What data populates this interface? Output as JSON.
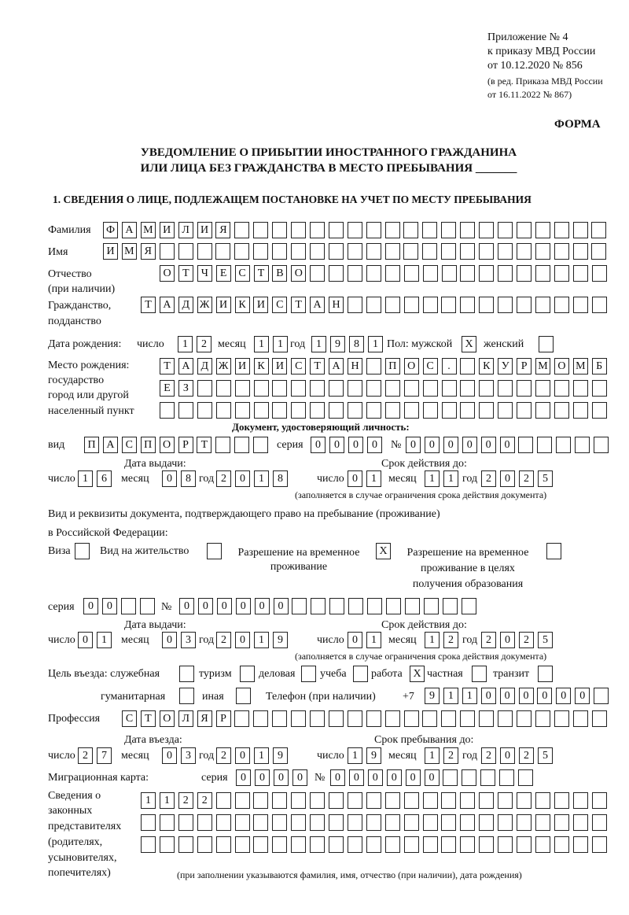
{
  "header": {
    "l1": "Приложение № 4",
    "l2": "к приказу МВД России",
    "l3": "от 10.12.2020 № 856",
    "l4": "(в ред. Приказа МВД России",
    "l5": "от 16.11.2022 № 867)"
  },
  "form_label": "ФОРМА",
  "title1": "УВЕДОМЛЕНИЕ О ПРИБЫТИИ ИНОСТРАННОГО ГРАЖДАНИНА",
  "title2": "ИЛИ ЛИЦА БЕЗ ГРАЖДАНСТВА В МЕСТО ПРЕБЫВАНИЯ _______",
  "section1": "1. СВЕДЕНИЯ О ЛИЦЕ, ПОДЛЕЖАЩЕМ ПОСТАНОВКЕ НА УЧЕТ ПО МЕСТУ ПРЕБЫВАНИЯ",
  "labels": {
    "surname": "Фамилия",
    "name": "Имя",
    "patronymic": "Отчество",
    "patronymic2": "(при наличии)",
    "citizenship": "Гражданство,",
    "citizenship2": "подданство",
    "birth_date": "Дата рождения:",
    "day": "число",
    "month": "месяц",
    "year": "год",
    "sex": "Пол: мужской",
    "female": "женский",
    "birthplace": "Место рождения:",
    "bp2": "государство",
    "bp3": "город или другой",
    "bp4": "населенный пункт",
    "id_doc": "Документ, удостоверяющий личность:",
    "kind": "вид",
    "series": "серия",
    "number": "№",
    "issue_date": "Дата выдачи:",
    "valid_until": "Срок действия до:",
    "valid_note": "(заполняется в случае ограничения срока действия документа)",
    "right_doc": "Вид и реквизиты документа, подтверждающего право на пребывание (проживание)",
    "right_doc2": "в Российской Федерации:",
    "visa": "Виза",
    "residence": "Вид на жительство",
    "temp": "Разрешение на временное",
    "temp2": "проживание",
    "temp_edu": "Разрешение на временное",
    "temp_edu2": "проживание в целях",
    "temp_edu3": "получения образования",
    "purpose": "Цель въезда: служебная",
    "tourism": "туризм",
    "business": "деловая",
    "study": "учеба",
    "work": "работа",
    "private": "частная",
    "transit": "транзит",
    "humanitarian": "гуманитарная",
    "other": "иная",
    "phone": "Телефон (при наличии)",
    "phone_prefix": "+7",
    "profession": "Профессия",
    "entry_date": "Дата въезда:",
    "stay_until": "Срок пребывания до:",
    "migration_card": "Миграционная карта:",
    "reps1": "Сведения о",
    "reps2": "законных",
    "reps3": "представителях",
    "reps4": "(родителях,",
    "reps5": "усыновителях,",
    "reps6": "попечителях)",
    "reps_note": "(при заполнении указываются фамилия, имя, отчество (при наличии), дата рождения)"
  },
  "values": {
    "surname": "ФАМИЛИЯ",
    "name": "ИМЯ",
    "patronymic": "ОТЧЕСТВО",
    "citizenship": "ТАДЖИКИСТАН",
    "birth_day": "12",
    "birth_month": "11",
    "birth_year": "1981",
    "male": "X",
    "female": "",
    "birthplace1": "ТАДЖИКИСТАН ПОС. КУРМОМБ",
    "birthplace2": "ЕЗ",
    "birthplace3": "",
    "doc_kind": "ПАСПОРТ",
    "doc_series": "0000",
    "doc_number": "000000",
    "doc_issue_day": "16",
    "doc_issue_month": "08",
    "doc_issue_year": "2018",
    "doc_valid_day": "01",
    "doc_valid_month": "11",
    "doc_valid_year": "2025",
    "visa": "",
    "residence": "",
    "temp": "X",
    "temp_edu": "",
    "right_series": "00",
    "right_number": "000000",
    "right_issue_day": "01",
    "right_issue_month": "03",
    "right_issue_year": "2019",
    "right_valid_day": "01",
    "right_valid_month": "12",
    "right_valid_year": "2025",
    "p_official": "",
    "p_tourism": "",
    "p_business": "",
    "p_study": "",
    "p_work": "X",
    "p_private": "",
    "p_transit": "",
    "p_humanitarian": "",
    "p_other": "",
    "phone": "911000000",
    "profession": "СТОЛЯР",
    "entry_day": "27",
    "entry_month": "03",
    "entry_year": "2019",
    "stay_day": "19",
    "stay_month": "12",
    "stay_year": "2025",
    "mc_series": "0000",
    "mc_number": "000000",
    "reps1": "1122",
    "reps2": "",
    "reps3": ""
  }
}
